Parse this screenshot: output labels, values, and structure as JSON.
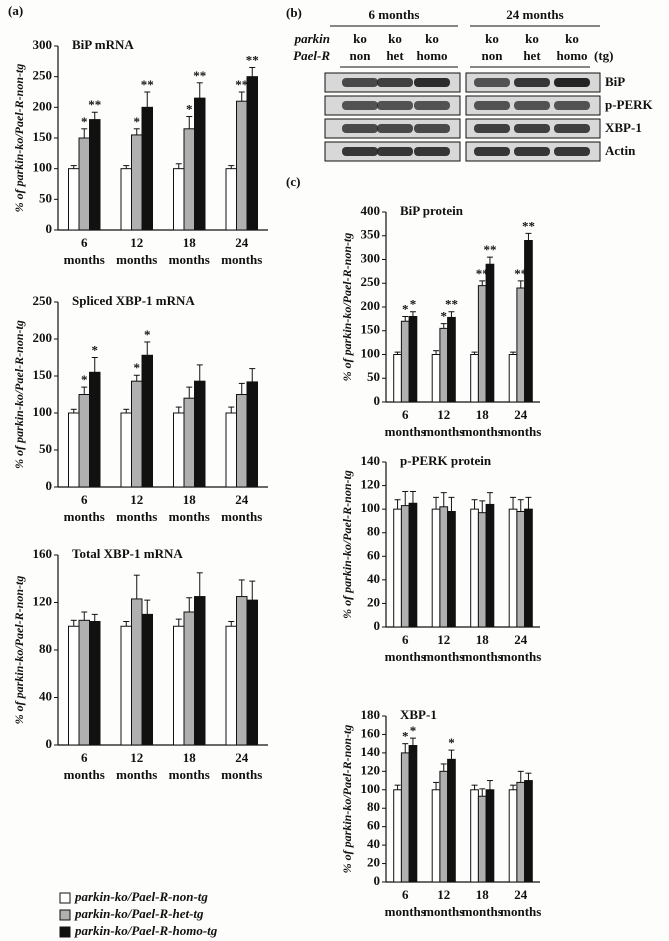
{
  "panel_labels": [
    "(a)",
    "(b)",
    "(c)"
  ],
  "blot": {
    "groups": [
      "6 months",
      "24 months"
    ],
    "row_labels": [
      "parkin",
      "Pael-R"
    ],
    "parkin": [
      "ko",
      "ko",
      "ko",
      "ko",
      "ko",
      "ko"
    ],
    "pael_r": [
      "non",
      "het",
      "homo",
      "non",
      "het",
      "homo"
    ],
    "unit": "(tg)",
    "bands": [
      "BiP",
      "p-PERK",
      "XBP-1",
      "Actin"
    ]
  },
  "chart_data": [
    {
      "type": "bar",
      "title": "BiP mRNA",
      "ylabel": "% of parkin-ko/Pael-R-non-tg",
      "categories": [
        "6",
        "12",
        "18",
        "24"
      ],
      "category_unit": "months",
      "ylim": [
        0,
        300
      ],
      "yticks": [
        0,
        50,
        100,
        150,
        200,
        250,
        300
      ],
      "series": [
        {
          "name": "parkin-ko/Pael-R-non-tg",
          "color": "#ffffff",
          "values": [
            100,
            100,
            100,
            100
          ],
          "errors": [
            5,
            5,
            8,
            5
          ],
          "stars": [
            null,
            null,
            null,
            null
          ]
        },
        {
          "name": "parkin-ko/Pael-R-het-tg",
          "color": "#b0b0b0",
          "values": [
            150,
            155,
            165,
            210
          ],
          "errors": [
            15,
            10,
            20,
            15
          ],
          "stars": [
            "*",
            "*",
            "*",
            "**"
          ]
        },
        {
          "name": "parkin-ko/Pael-R-homo-tg",
          "color": "#111111",
          "values": [
            180,
            200,
            215,
            250
          ],
          "errors": [
            12,
            25,
            25,
            15
          ],
          "stars": [
            "**",
            "**",
            "**",
            "**"
          ]
        }
      ]
    },
    {
      "type": "bar",
      "title": "Spliced XBP-1 mRNA",
      "ylabel": "% of parkin-ko/Pael-R-non-tg",
      "categories": [
        "6",
        "12",
        "18",
        "24"
      ],
      "category_unit": "months",
      "ylim": [
        0,
        250
      ],
      "yticks": [
        0,
        50,
        100,
        150,
        200,
        250
      ],
      "series": [
        {
          "color": "#ffffff",
          "values": [
            100,
            100,
            100,
            100
          ],
          "errors": [
            5,
            5,
            8,
            8
          ],
          "stars": [
            null,
            null,
            null,
            null
          ]
        },
        {
          "color": "#b0b0b0",
          "values": [
            125,
            143,
            120,
            125
          ],
          "errors": [
            10,
            8,
            15,
            15
          ],
          "stars": [
            "*",
            "*",
            null,
            null
          ]
        },
        {
          "color": "#111111",
          "values": [
            155,
            178,
            143,
            142
          ],
          "errors": [
            20,
            18,
            22,
            18
          ],
          "stars": [
            "*",
            "*",
            null,
            null
          ]
        }
      ]
    },
    {
      "type": "bar",
      "title": "Total XBP-1 mRNA",
      "ylabel": "% of parkin-ko/Pael-R-non-tg",
      "categories": [
        "6",
        "12",
        "18",
        "24"
      ],
      "category_unit": "months",
      "ylim": [
        0,
        160
      ],
      "yticks": [
        0,
        40,
        80,
        120,
        160
      ],
      "series": [
        {
          "color": "#ffffff",
          "values": [
            100,
            100,
            100,
            100
          ],
          "errors": [
            5,
            4,
            6,
            4
          ],
          "stars": [
            null,
            null,
            null,
            null
          ]
        },
        {
          "color": "#b0b0b0",
          "values": [
            105,
            123,
            112,
            125
          ],
          "errors": [
            7,
            20,
            12,
            14
          ],
          "stars": [
            null,
            null,
            null,
            null
          ]
        },
        {
          "color": "#111111",
          "values": [
            104,
            110,
            125,
            122
          ],
          "errors": [
            6,
            12,
            20,
            16
          ],
          "stars": [
            null,
            null,
            null,
            null
          ]
        }
      ]
    },
    {
      "type": "bar",
      "title": "BiP protein",
      "ylabel": "% of parkin-ko/Pael-R-non-tg",
      "categories": [
        "6",
        "12",
        "18",
        "24"
      ],
      "category_unit": "months",
      "ylim": [
        0,
        400
      ],
      "yticks": [
        0,
        50,
        100,
        150,
        200,
        250,
        300,
        350,
        400
      ],
      "series": [
        {
          "color": "#ffffff",
          "values": [
            100,
            100,
            100,
            100
          ],
          "errors": [
            5,
            8,
            5,
            5
          ],
          "stars": [
            null,
            null,
            null,
            null
          ]
        },
        {
          "color": "#b0b0b0",
          "values": [
            170,
            155,
            245,
            240
          ],
          "errors": [
            10,
            10,
            10,
            15
          ],
          "stars": [
            "*",
            "*",
            "**",
            "**"
          ]
        },
        {
          "color": "#111111",
          "values": [
            180,
            178,
            290,
            340
          ],
          "errors": [
            10,
            12,
            15,
            15
          ],
          "stars": [
            "*",
            "**",
            "**",
            "**"
          ]
        }
      ]
    },
    {
      "type": "bar",
      "title": "p-PERK protein",
      "ylabel": "% of parkin-ko/Pael-R-non-tg",
      "categories": [
        "6",
        "12",
        "18",
        "24"
      ],
      "category_unit": "months",
      "ylim": [
        0,
        140
      ],
      "yticks": [
        0,
        20,
        40,
        60,
        80,
        100,
        120,
        140
      ],
      "series": [
        {
          "color": "#ffffff",
          "values": [
            100,
            100,
            100,
            100
          ],
          "errors": [
            8,
            10,
            8,
            10
          ],
          "stars": [
            null,
            null,
            null,
            null
          ]
        },
        {
          "color": "#b0b0b0",
          "values": [
            103,
            102,
            97,
            98
          ],
          "errors": [
            12,
            12,
            10,
            10
          ],
          "stars": [
            null,
            null,
            null,
            null
          ]
        },
        {
          "color": "#111111",
          "values": [
            105,
            98,
            104,
            100
          ],
          "errors": [
            10,
            12,
            10,
            10
          ],
          "stars": [
            null,
            null,
            null,
            null
          ]
        }
      ]
    },
    {
      "type": "bar",
      "title": "XBP-1",
      "ylabel": "% of parkin-ko/Pael-R-non-tg",
      "categories": [
        "6",
        "12",
        "18",
        "24"
      ],
      "category_unit": "months",
      "ylim": [
        0,
        180
      ],
      "yticks": [
        0,
        20,
        40,
        60,
        80,
        100,
        120,
        140,
        160,
        180
      ],
      "series": [
        {
          "color": "#ffffff",
          "values": [
            100,
            100,
            100,
            100
          ],
          "errors": [
            5,
            8,
            5,
            5
          ],
          "stars": [
            null,
            null,
            null,
            null
          ]
        },
        {
          "color": "#b0b0b0",
          "values": [
            140,
            120,
            93,
            108
          ],
          "errors": [
            10,
            8,
            8,
            12
          ],
          "stars": [
            "*",
            null,
            null,
            null
          ]
        },
        {
          "color": "#111111",
          "values": [
            148,
            133,
            100,
            110
          ],
          "errors": [
            8,
            10,
            10,
            8
          ],
          "stars": [
            "*",
            "*",
            null,
            null
          ]
        }
      ]
    }
  ]
}
